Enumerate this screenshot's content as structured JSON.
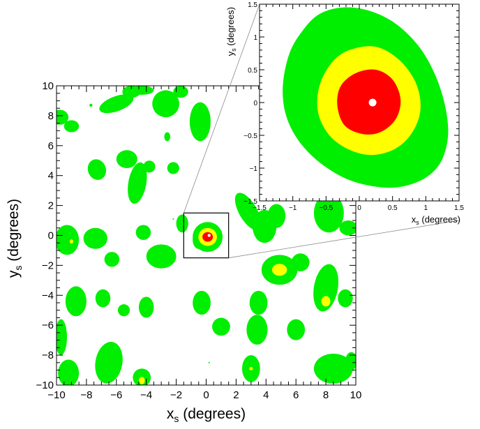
{
  "colors": {
    "background": "#ffffff",
    "green": "#00ee00",
    "yellow": "#ffff00",
    "red": "#ff0000",
    "marker": "#ffffff",
    "axis": "#000000",
    "connector": "#8a8a8a"
  },
  "chart_data": [
    {
      "id": "main",
      "type": "heatmap",
      "subtype": "contour-significance-map",
      "xlabel": "x",
      "xlabel_sub": "s",
      "xlabel_unit": " (degrees)",
      "ylabel": "y",
      "ylabel_sub": "s",
      "ylabel_unit": " (degrees)",
      "xlim": [
        -10,
        10
      ],
      "ylim": [
        -10,
        10
      ],
      "xticks": [
        -10,
        -8,
        -6,
        -4,
        -2,
        0,
        2,
        4,
        6,
        8,
        10
      ],
      "yticks": [
        -10,
        -8,
        -6,
        -4,
        -2,
        0,
        2,
        4,
        6,
        8,
        10
      ],
      "xtick_labels": [
        "−10",
        "−8",
        "−6",
        "−4",
        "−2",
        "0",
        "2",
        "4",
        "6",
        "8",
        "10"
      ],
      "ytick_labels": [
        "−10",
        "−8",
        "−6",
        "−4",
        "−2",
        "0",
        "2",
        "4",
        "6",
        "8",
        "10"
      ],
      "levels": [
        "green",
        "yellow",
        "red"
      ],
      "blobs": [
        {
          "x": -9.8,
          "y": 7.9,
          "rx": 0.6,
          "ry": 0.5,
          "rot": 0,
          "level": "green"
        },
        {
          "x": -9.0,
          "y": 7.3,
          "rx": 0.5,
          "ry": 0.4,
          "rot": 0,
          "level": "green"
        },
        {
          "x": -7.7,
          "y": 8.7,
          "rx": 0.1,
          "ry": 0.1,
          "rot": 0,
          "level": "green"
        },
        {
          "x": -6.0,
          "y": 8.8,
          "rx": 1.2,
          "ry": 0.5,
          "rot": -20,
          "level": "green"
        },
        {
          "x": -5.0,
          "y": 9.6,
          "rx": 0.6,
          "ry": 0.4,
          "rot": 0,
          "level": "green"
        },
        {
          "x": -4.3,
          "y": 9.7,
          "rx": 0.8,
          "ry": 0.3,
          "rot": 0,
          "level": "green"
        },
        {
          "x": -2.7,
          "y": 8.8,
          "rx": 0.9,
          "ry": 0.9,
          "rot": 10,
          "level": "green"
        },
        {
          "x": -1.7,
          "y": 9.6,
          "rx": 0.5,
          "ry": 0.4,
          "rot": 0,
          "level": "green"
        },
        {
          "x": -0.4,
          "y": 7.6,
          "rx": 0.7,
          "ry": 1.3,
          "rot": 0,
          "level": "green"
        },
        {
          "x": -2.6,
          "y": 6.6,
          "rx": 0.2,
          "ry": 0.3,
          "rot": 0,
          "level": "green"
        },
        {
          "x": -7.3,
          "y": 4.4,
          "rx": 0.6,
          "ry": 0.7,
          "rot": -20,
          "level": "green"
        },
        {
          "x": -5.3,
          "y": 5.1,
          "rx": 0.7,
          "ry": 0.6,
          "rot": 0,
          "level": "green"
        },
        {
          "x": -4.6,
          "y": 3.5,
          "rx": 0.6,
          "ry": 1.4,
          "rot": 10,
          "level": "green"
        },
        {
          "x": -3.8,
          "y": 4.6,
          "rx": 0.4,
          "ry": 0.4,
          "rot": 0,
          "level": "green"
        },
        {
          "x": -2.2,
          "y": 4.5,
          "rx": 0.4,
          "ry": 0.4,
          "rot": 0,
          "level": "green"
        },
        {
          "x": -9.3,
          "y": -0.3,
          "rx": 0.8,
          "ry": 1.0,
          "rot": 0,
          "level": "green"
        },
        {
          "x": -7.4,
          "y": -0.2,
          "rx": 0.8,
          "ry": 0.7,
          "rot": 0,
          "level": "green"
        },
        {
          "x": -6.3,
          "y": -1.6,
          "rx": 0.5,
          "ry": 0.5,
          "rot": 0,
          "level": "green"
        },
        {
          "x": -4.2,
          "y": 0.2,
          "rx": 0.5,
          "ry": 0.5,
          "rot": 0,
          "level": "green"
        },
        {
          "x": -3.0,
          "y": -1.4,
          "rx": 1.0,
          "ry": 0.8,
          "rot": 0,
          "level": "green"
        },
        {
          "x": -1.6,
          "y": 0.8,
          "rx": 0.4,
          "ry": 0.6,
          "rot": 0,
          "level": "green"
        },
        {
          "x": -0.5,
          "y": -0.3,
          "rx": 0.4,
          "ry": 0.6,
          "rot": 0,
          "level": "green"
        },
        {
          "x": -2.2,
          "y": 1.1,
          "rx": 0.05,
          "ry": 0.05,
          "rot": 0,
          "level": "green"
        },
        {
          "x": 2.8,
          "y": 1.6,
          "rx": 0.6,
          "ry": 1.4,
          "rot": -30,
          "level": "green"
        },
        {
          "x": 3.9,
          "y": 0.6,
          "rx": 0.8,
          "ry": 1.1,
          "rot": 0,
          "level": "green"
        },
        {
          "x": 4.7,
          "y": 1.3,
          "rx": 0.6,
          "ry": 0.8,
          "rot": 0,
          "level": "green"
        },
        {
          "x": 8.2,
          "y": 1.5,
          "rx": 1.0,
          "ry": 1.3,
          "rot": 0,
          "level": "green"
        },
        {
          "x": 9.5,
          "y": 0.5,
          "rx": 0.6,
          "ry": 0.5,
          "rot": 0,
          "level": "green"
        },
        {
          "x": 4.9,
          "y": -2.3,
          "rx": 1.2,
          "ry": 1.0,
          "rot": 0,
          "level": "green"
        },
        {
          "x": 4.9,
          "y": -2.3,
          "rx": 0.5,
          "ry": 0.4,
          "rot": 0,
          "level": "yellow"
        },
        {
          "x": 6.3,
          "y": -1.8,
          "rx": 0.6,
          "ry": 0.6,
          "rot": 0,
          "level": "green"
        },
        {
          "x": 8.0,
          "y": -3.5,
          "rx": 0.8,
          "ry": 1.6,
          "rot": 10,
          "level": "green"
        },
        {
          "x": 8.0,
          "y": -4.4,
          "rx": 0.3,
          "ry": 0.35,
          "rot": 0,
          "level": "yellow"
        },
        {
          "x": 9.3,
          "y": -4.2,
          "rx": 0.5,
          "ry": 0.6,
          "rot": 0,
          "level": "green"
        },
        {
          "x": 3.5,
          "y": -4.5,
          "rx": 0.6,
          "ry": 0.8,
          "rot": 0,
          "level": "green"
        },
        {
          "x": 3.4,
          "y": -6.3,
          "rx": 0.7,
          "ry": 1.0,
          "rot": 0,
          "level": "green"
        },
        {
          "x": -8.7,
          "y": -4.4,
          "rx": 0.7,
          "ry": 1.0,
          "rot": 0,
          "level": "green"
        },
        {
          "x": -6.9,
          "y": -4.2,
          "rx": 0.5,
          "ry": 0.6,
          "rot": 0,
          "level": "green"
        },
        {
          "x": -5.5,
          "y": -5.0,
          "rx": 0.4,
          "ry": 0.4,
          "rot": 0,
          "level": "green"
        },
        {
          "x": -4.0,
          "y": -4.8,
          "rx": 0.5,
          "ry": 0.7,
          "rot": 0,
          "level": "green"
        },
        {
          "x": -0.3,
          "y": -4.5,
          "rx": 0.6,
          "ry": 0.8,
          "rot": 0,
          "level": "green"
        },
        {
          "x": 1.0,
          "y": -6.1,
          "rx": 0.6,
          "ry": 0.6,
          "rot": 0,
          "level": "green"
        },
        {
          "x": 6.0,
          "y": -6.3,
          "rx": 0.6,
          "ry": 0.7,
          "rot": 0,
          "level": "green"
        },
        {
          "x": -9.7,
          "y": -6.8,
          "rx": 0.4,
          "ry": 1.2,
          "rot": 0,
          "level": "green"
        },
        {
          "x": -9.2,
          "y": -9.2,
          "rx": 0.7,
          "ry": 0.9,
          "rot": 0,
          "level": "green"
        },
        {
          "x": -6.5,
          "y": -8.5,
          "rx": 0.9,
          "ry": 1.4,
          "rot": 10,
          "level": "green"
        },
        {
          "x": -4.3,
          "y": -9.5,
          "rx": 0.6,
          "ry": 0.6,
          "rot": 0,
          "level": "green"
        },
        {
          "x": -4.3,
          "y": -9.7,
          "rx": 0.2,
          "ry": 0.25,
          "rot": 0,
          "level": "yellow"
        },
        {
          "x": 0.2,
          "y": -8.5,
          "rx": 0.05,
          "ry": 0.05,
          "rot": 0,
          "level": "green"
        },
        {
          "x": 3.0,
          "y": -8.9,
          "rx": 0.6,
          "ry": 0.9,
          "rot": 0,
          "level": "green"
        },
        {
          "x": 3.0,
          "y": -8.9,
          "rx": 0.12,
          "ry": 0.12,
          "rot": 0,
          "level": "yellow"
        },
        {
          "x": 8.5,
          "y": -8.9,
          "rx": 1.3,
          "ry": 1.0,
          "rot": 0,
          "level": "green"
        },
        {
          "x": 9.7,
          "y": -8.4,
          "rx": 0.4,
          "ry": 0.6,
          "rot": 0,
          "level": "green"
        },
        {
          "x": -9.7,
          "y": -0.3,
          "rx": 0.2,
          "ry": 0.2,
          "rot": 0,
          "level": "green"
        },
        {
          "x": -9.0,
          "y": -0.4,
          "rx": 0.12,
          "ry": 0.14,
          "rot": 0,
          "level": "yellow"
        }
      ],
      "central_source": {
        "x": 0.1,
        "y": -0.1,
        "green": {
          "rx": 1.0,
          "ry": 1.0
        },
        "yellow": {
          "rx": 0.62,
          "ry": 0.6
        },
        "red": {
          "rx": 0.35,
          "ry": 0.32
        },
        "marker": {
          "x": 0.2,
          "y": 0.0
        }
      },
      "zoom_box": {
        "x": [
          -1.5,
          1.5
        ],
        "y": [
          -1.5,
          1.5
        ]
      }
    },
    {
      "id": "inset",
      "type": "heatmap",
      "subtype": "zoomed-contour",
      "xlabel": "x",
      "xlabel_sub": "s",
      "xlabel_unit": " (degrees)",
      "ylabel": "y",
      "ylabel_sub": "s",
      "ylabel_unit": " (degrees)",
      "xlim": [
        -1.5,
        1.5
      ],
      "ylim": [
        -1.5,
        1.5
      ],
      "xticks": [
        -1.5,
        -1,
        -0.5,
        0,
        0.5,
        1,
        1.5
      ],
      "yticks": [
        -1.5,
        -1,
        -0.5,
        0,
        0.5,
        1,
        1.5
      ],
      "xtick_labels": [
        "−1.5",
        "−1",
        "−0.5",
        "0",
        "0.5",
        "1",
        "1.5"
      ],
      "ytick_labels": [
        "−1.5",
        "−1",
        "−0.5",
        "0",
        "0.5",
        "1",
        "1.5"
      ],
      "contours": [
        {
          "level": "green",
          "points": [
            [
              -0.6,
              1.35
            ],
            [
              -0.25,
              1.45
            ],
            [
              0.15,
              1.4
            ],
            [
              0.55,
              1.2
            ],
            [
              0.9,
              0.85
            ],
            [
              1.15,
              0.4
            ],
            [
              1.3,
              -0.1
            ],
            [
              1.33,
              -0.55
            ],
            [
              1.2,
              -0.95
            ],
            [
              0.9,
              -1.2
            ],
            [
              0.45,
              -1.3
            ],
            [
              -0.1,
              -1.2
            ],
            [
              -0.55,
              -0.95
            ],
            [
              -0.9,
              -0.6
            ],
            [
              -1.1,
              -0.2
            ],
            [
              -1.15,
              0.25
            ],
            [
              -1.05,
              0.75
            ],
            [
              -0.85,
              1.1
            ]
          ]
        },
        {
          "level": "yellow",
          "points": [
            [
              -0.15,
              0.8
            ],
            [
              0.25,
              0.85
            ],
            [
              0.6,
              0.65
            ],
            [
              0.85,
              0.3
            ],
            [
              0.92,
              -0.1
            ],
            [
              0.8,
              -0.45
            ],
            [
              0.55,
              -0.7
            ],
            [
              0.2,
              -0.8
            ],
            [
              -0.15,
              -0.72
            ],
            [
              -0.45,
              -0.5
            ],
            [
              -0.62,
              -0.15
            ],
            [
              -0.6,
              0.25
            ],
            [
              -0.42,
              0.6
            ]
          ]
        },
        {
          "level": "red",
          "points": [
            [
              -0.05,
              0.45
            ],
            [
              0.25,
              0.5
            ],
            [
              0.5,
              0.35
            ],
            [
              0.62,
              0.05
            ],
            [
              0.55,
              -0.25
            ],
            [
              0.32,
              -0.45
            ],
            [
              0.05,
              -0.48
            ],
            [
              -0.22,
              -0.35
            ],
            [
              -0.33,
              -0.05
            ],
            [
              -0.28,
              0.25
            ]
          ]
        }
      ],
      "marker": {
        "x": 0.2,
        "y": 0.0
      }
    }
  ]
}
